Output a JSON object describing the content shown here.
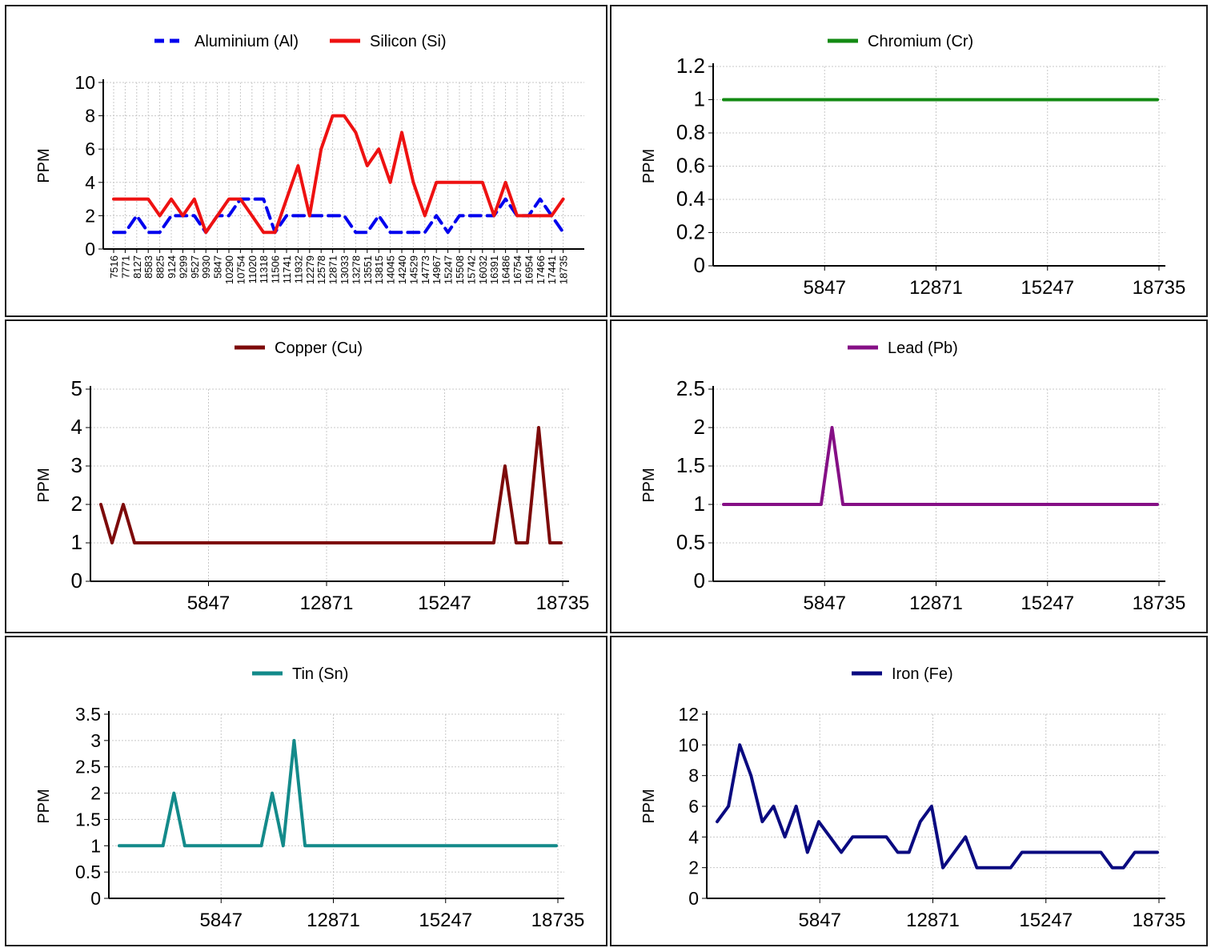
{
  "chart_data": [
    {
      "type": "line",
      "ylabel": "PPM",
      "ylim": [
        0,
        10
      ],
      "yticks": [
        0,
        2,
        4,
        6,
        8,
        10
      ],
      "x": [
        "7516",
        "7771",
        "8127",
        "8583",
        "8825",
        "9124",
        "9299",
        "9527",
        "9930",
        "5847",
        "10290",
        "10754",
        "11020",
        "11318",
        "11506",
        "11741",
        "11932",
        "12279",
        "12578",
        "12871",
        "13033",
        "13278",
        "13551",
        "13815",
        "14045",
        "14240",
        "14529",
        "14773",
        "14967",
        "15247",
        "15508",
        "15742",
        "16032",
        "16391",
        "16486",
        "16754",
        "16954",
        "17466",
        "17441",
        "18735"
      ],
      "xtick_labels": [
        "7516",
        "7771",
        "8127",
        "8583",
        "8825",
        "9124",
        "9299",
        "9527",
        "9930",
        "5847",
        "10290",
        "10754",
        "11020",
        "11318",
        "11506",
        "11741",
        "11932",
        "12279",
        "12578",
        "12871",
        "13033",
        "13278",
        "13551",
        "13815",
        "14045",
        "14240",
        "14529",
        "14773",
        "14967",
        "15247",
        "15508",
        "15742",
        "16032",
        "16391",
        "16486",
        "16754",
        "16954",
        "17466",
        "17441",
        "18735"
      ],
      "grid": true,
      "legend_position": "top",
      "series": [
        {
          "name": "Aluminium (Al)",
          "color": "#0000ee",
          "dash": true,
          "values": [
            1,
            1,
            2,
            1,
            1,
            2,
            2,
            2,
            1,
            2,
            2,
            3,
            3,
            3,
            1,
            2,
            2,
            2,
            2,
            2,
            2,
            1,
            1,
            2,
            1,
            1,
            1,
            1,
            2,
            1,
            2,
            2,
            2,
            2,
            3,
            2,
            2,
            3,
            2,
            1
          ]
        },
        {
          "name": "Silicon (Si)",
          "color": "#ee1111",
          "dash": false,
          "values": [
            3,
            3,
            3,
            3,
            2,
            3,
            2,
            3,
            1,
            2,
            3,
            3,
            2,
            1,
            1,
            3,
            5,
            2,
            6,
            8,
            8,
            7,
            5,
            6,
            4,
            7,
            4,
            2,
            4,
            4,
            4,
            4,
            4,
            2,
            4,
            2,
            2,
            2,
            2,
            3
          ]
        }
      ]
    },
    {
      "type": "line",
      "ylabel": "PPM",
      "ylim": [
        0,
        1.2
      ],
      "yticks": [
        0,
        0.2,
        0.4,
        0.6,
        0.8,
        1,
        1.2
      ],
      "ytick_labels": [
        "0",
        "0.2",
        "0.4",
        "0.6",
        "0.8",
        "1",
        "1.2"
      ],
      "xtick_labels": [
        "5847",
        "12871",
        "15247",
        "18735"
      ],
      "grid": true,
      "legend_position": "top",
      "series": [
        {
          "name": "Chromium (Cr)",
          "color": "#138a13",
          "values": [
            1,
            1,
            1,
            1,
            1,
            1,
            1,
            1,
            1,
            1,
            1,
            1,
            1,
            1,
            1,
            1,
            1,
            1,
            1,
            1,
            1,
            1,
            1,
            1,
            1,
            1,
            1,
            1,
            1,
            1,
            1,
            1,
            1,
            1,
            1,
            1,
            1,
            1,
            1,
            1,
            1
          ]
        }
      ]
    },
    {
      "type": "line",
      "ylabel": "PPM",
      "ylim": [
        0,
        5
      ],
      "yticks": [
        0,
        1,
        2,
        3,
        4,
        5
      ],
      "xtick_labels": [
        "5847",
        "12871",
        "15247",
        "18735"
      ],
      "grid": true,
      "legend_position": "top",
      "series": [
        {
          "name": "Copper (Cu)",
          "color": "#7d0a0a",
          "values": [
            2,
            1,
            2,
            1,
            1,
            1,
            1,
            1,
            1,
            1,
            1,
            1,
            1,
            1,
            1,
            1,
            1,
            1,
            1,
            1,
            1,
            1,
            1,
            1,
            1,
            1,
            1,
            1,
            1,
            1,
            1,
            1,
            1,
            1,
            1,
            1,
            3,
            1,
            1,
            4,
            1,
            1
          ]
        }
      ]
    },
    {
      "type": "line",
      "ylabel": "PPM",
      "ylim": [
        0,
        2.5
      ],
      "yticks": [
        0,
        0.5,
        1,
        1.5,
        2,
        2.5
      ],
      "xtick_labels": [
        "5847",
        "12871",
        "15247",
        "18735"
      ],
      "grid": true,
      "legend_position": "top",
      "series": [
        {
          "name": "Lead (Pb)",
          "color": "#850f85",
          "values": [
            1,
            1,
            1,
            1,
            1,
            1,
            1,
            1,
            1,
            1,
            2,
            1,
            1,
            1,
            1,
            1,
            1,
            1,
            1,
            1,
            1,
            1,
            1,
            1,
            1,
            1,
            1,
            1,
            1,
            1,
            1,
            1,
            1,
            1,
            1,
            1,
            1,
            1,
            1,
            1,
            1
          ]
        }
      ]
    },
    {
      "type": "line",
      "ylabel": "PPM",
      "ylim": [
        0,
        3.5
      ],
      "yticks": [
        0,
        0.5,
        1,
        1.5,
        2,
        2.5,
        3,
        3.5
      ],
      "xtick_labels": [
        "5847",
        "12871",
        "15247",
        "18735"
      ],
      "grid": true,
      "legend_position": "top",
      "series": [
        {
          "name": "Tin (Sn)",
          "color": "#138a8a",
          "values": [
            1,
            1,
            1,
            1,
            1,
            2,
            1,
            1,
            1,
            1,
            1,
            1,
            1,
            1,
            2,
            1,
            3,
            1,
            1,
            1,
            1,
            1,
            1,
            1,
            1,
            1,
            1,
            1,
            1,
            1,
            1,
            1,
            1,
            1,
            1,
            1,
            1,
            1,
            1,
            1,
            1
          ]
        }
      ]
    },
    {
      "type": "line",
      "ylabel": "PPM",
      "ylim": [
        0,
        12
      ],
      "yticks": [
        0,
        2,
        4,
        6,
        8,
        10,
        12
      ],
      "xtick_labels": [
        "5847",
        "12871",
        "15247",
        "18735"
      ],
      "grid": true,
      "legend_position": "top",
      "series": [
        {
          "name": "Iron (Fe)",
          "color": "#0a0a80",
          "values": [
            5,
            6,
            10,
            8,
            5,
            6,
            4,
            6,
            3,
            5,
            4,
            3,
            4,
            4,
            4,
            4,
            3,
            3,
            5,
            6,
            2,
            3,
            4,
            2,
            2,
            2,
            2,
            3,
            3,
            3,
            3,
            3,
            3,
            3,
            3,
            2,
            2,
            3,
            3,
            3
          ]
        }
      ]
    }
  ]
}
